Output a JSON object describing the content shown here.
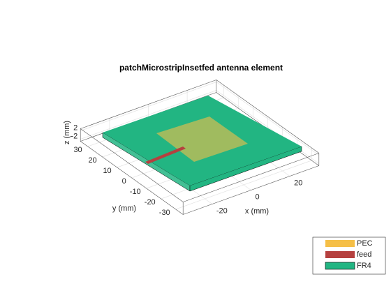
{
  "chart_data": {
    "type": "patch3d",
    "title": "patchMicrostripInsetfed antenna element",
    "xlabel": "x (mm)",
    "ylabel": "y (mm)",
    "zlabel": "z (mm)",
    "xlim": [
      -35,
      35
    ],
    "ylim": [
      -35,
      35
    ],
    "zlim": [
      -3,
      3
    ],
    "xticks": [
      -20,
      0,
      20
    ],
    "yticks": [
      -30,
      -20,
      -10,
      0,
      10,
      20,
      30
    ],
    "zticks": [
      -2,
      2
    ],
    "grid": true,
    "legend_position": "southeast",
    "legend": [
      {
        "name": "PEC",
        "color": "#f5bf47"
      },
      {
        "name": "feed",
        "color": "#b5403f"
      },
      {
        "name": "FR4",
        "color": "#22b582"
      }
    ]
  }
}
